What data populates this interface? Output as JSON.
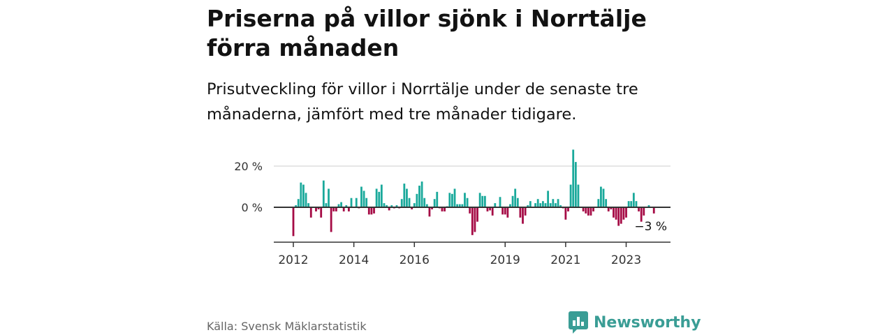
{
  "header": {
    "title": "Priserna på villor sjönk i Norrtälje förra månaden",
    "subtitle": "Prisutveckling för villor i Norrtälje under de senaste tre månaderna, jämfört med tre månader tidigare."
  },
  "footer": {
    "source": "Källa: Svensk Mäklarstatistik",
    "logo": "Newsworthy"
  },
  "colors": {
    "positive": "#1aa99b",
    "negative": "#a50b45",
    "axis": "#333333",
    "grid": "#dddddd"
  },
  "chart_data": {
    "type": "bar",
    "title": "",
    "xlabel": "",
    "ylabel": "",
    "start": "2012-01",
    "frequency": "monthly",
    "ylim": [
      -17,
      30
    ],
    "yticks": [
      {
        "value": 20,
        "label": "20 %"
      },
      {
        "value": 0,
        "label": "0 %"
      }
    ],
    "xticks": [
      {
        "month_index": 0,
        "label": "2012"
      },
      {
        "month_index": 24,
        "label": "2014"
      },
      {
        "month_index": 48,
        "label": "2016"
      },
      {
        "month_index": 84,
        "label": "2019"
      },
      {
        "month_index": 108,
        "label": "2021"
      },
      {
        "month_index": 132,
        "label": "2023"
      }
    ],
    "values": [
      -14,
      1,
      4,
      12,
      11,
      7,
      2,
      -5,
      0,
      -2,
      -1,
      -5,
      13,
      2,
      9,
      -12,
      -2,
      -2,
      1.5,
      2.5,
      -2,
      1,
      -2,
      4.5,
      0,
      4.5,
      -0.5,
      10,
      8,
      4.5,
      -3.5,
      -3.5,
      -3,
      9,
      7.5,
      11,
      2,
      1,
      -1.5,
      1,
      -0.5,
      1,
      -0.5,
      4,
      11.5,
      9,
      4.5,
      -1,
      2,
      6.5,
      10.5,
      12.5,
      4.5,
      1.5,
      -4.5,
      -1,
      4,
      7.5,
      -0.5,
      -2,
      -2,
      0.5,
      7,
      6.5,
      9,
      1.5,
      1.5,
      1.5,
      7,
      4.5,
      -3,
      -13.5,
      -12,
      -7,
      7,
      5.5,
      5.5,
      -2,
      -1.5,
      -4,
      2,
      0,
      5,
      -3.5,
      -3.5,
      -5,
      1.5,
      5.5,
      9,
      4.5,
      -5,
      -8,
      -4,
      1,
      3,
      0,
      2,
      4,
      2,
      3,
      2,
      8,
      2,
      4,
      2,
      4,
      1,
      -0.5,
      -6,
      -2,
      11,
      28,
      22,
      11,
      0,
      -2,
      -3,
      -4,
      -4,
      -2,
      0,
      4,
      10,
      9,
      4,
      -2,
      -1,
      -5,
      -6,
      -9,
      -8,
      -6,
      -5,
      3,
      3,
      7,
      3,
      -2,
      -7,
      -4,
      0,
      1,
      0,
      -3
    ],
    "annotation": "−3 %"
  }
}
